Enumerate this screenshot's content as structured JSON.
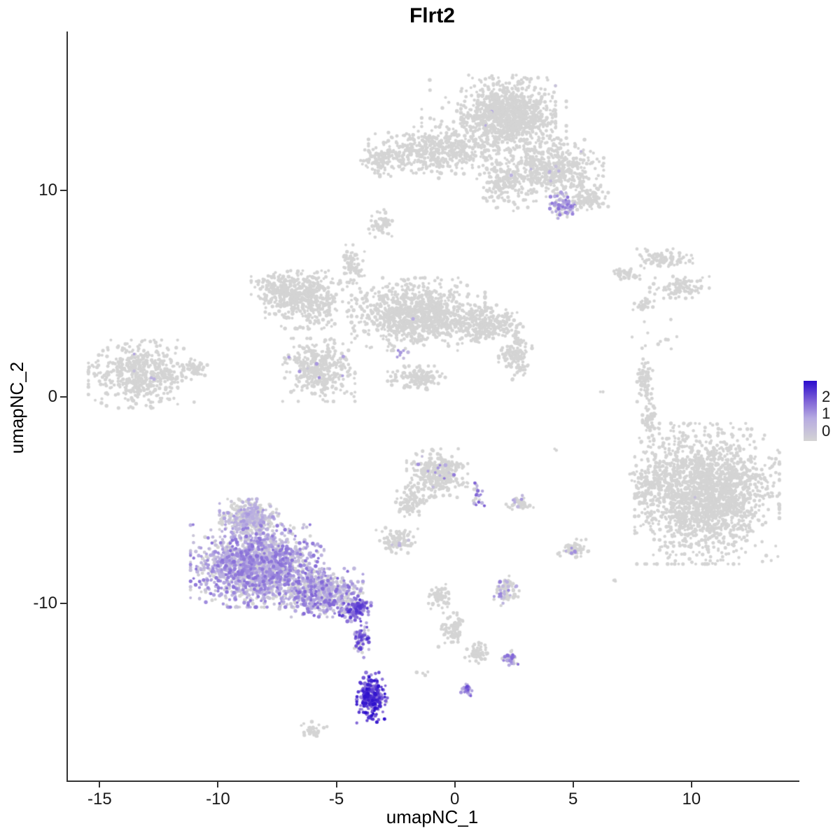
{
  "chart_data": {
    "type": "scatter",
    "title": "Flrt2",
    "xlabel": "umapNC_1",
    "ylabel": "umapNC_2",
    "xlim": [
      -16.4,
      14.5
    ],
    "ylim": [
      -18.6,
      17.7
    ],
    "xticks": [
      -15,
      -10,
      -5,
      0,
      5,
      10
    ],
    "yticks": [
      10,
      0,
      -10
    ],
    "grid": false,
    "background": "#ffffff",
    "axis_color": "#333333",
    "point_color_zero": "#d4d4d4",
    "value_max": 2.6,
    "color_stops": [
      {
        "t": 0.0,
        "color": "#d4d4d4"
      },
      {
        "t": 0.38,
        "color": "#b6aae1"
      },
      {
        "t": 0.68,
        "color": "#7b5ed6"
      },
      {
        "t": 1.0,
        "color": "#2a0ccd"
      }
    ],
    "legend": {
      "position": "right",
      "labels": [
        "2",
        "1",
        "0"
      ]
    },
    "clusters": [
      {
        "name": "top-main",
        "cx": 2.2,
        "cy": 13.7,
        "rx": 1.7,
        "ry": 1.5,
        "n": 850,
        "expr": {
          "frac": 0.004,
          "min": 0.4,
          "max": 1.2
        }
      },
      {
        "name": "top-main-halo",
        "cx": 1.6,
        "cy": 13.0,
        "rx": 2.6,
        "ry": 2.2,
        "n": 300
      },
      {
        "name": "top-left-arm",
        "cx": -1.0,
        "cy": 11.9,
        "rx": 2.3,
        "ry": 1.0,
        "n": 420
      },
      {
        "name": "top-left-tip",
        "cx": -3.2,
        "cy": 11.5,
        "rx": 0.8,
        "ry": 0.7,
        "n": 90
      },
      {
        "name": "top-right-arm",
        "cx": 4.0,
        "cy": 11.0,
        "rx": 1.9,
        "ry": 1.3,
        "n": 520,
        "expr": {
          "frac": 0.012,
          "min": 0.3,
          "max": 1.0
        }
      },
      {
        "name": "top-bridge",
        "cx": 2.0,
        "cy": 10.3,
        "rx": 0.9,
        "ry": 1.1,
        "n": 140
      },
      {
        "name": "top-purple-patch",
        "cx": 4.5,
        "cy": 9.2,
        "rx": 0.55,
        "ry": 0.6,
        "n": 80,
        "expr": {
          "frac": 0.75,
          "min": 0.3,
          "max": 1.6
        }
      },
      {
        "name": "top-right-tail",
        "cx": 5.6,
        "cy": 9.6,
        "rx": 0.7,
        "ry": 0.5,
        "n": 90
      },
      {
        "name": "blob-upper-small",
        "cx": -3.1,
        "cy": 8.3,
        "rx": 0.5,
        "ry": 0.65,
        "n": 60
      },
      {
        "name": "mid-main",
        "cx": -1.6,
        "cy": 4.0,
        "rx": 2.4,
        "ry": 1.5,
        "n": 1000,
        "expr": {
          "frac": 0.004,
          "min": 0.3,
          "max": 1.2
        }
      },
      {
        "name": "mid-left-lobe",
        "cx": -6.3,
        "cy": 4.7,
        "rx": 1.5,
        "ry": 1.2,
        "n": 420
      },
      {
        "name": "mid-left-top",
        "cx": -7.6,
        "cy": 5.3,
        "rx": 0.9,
        "ry": 0.7,
        "n": 140
      },
      {
        "name": "mid-sw-lobe",
        "cx": -5.8,
        "cy": 1.3,
        "rx": 1.3,
        "ry": 1.3,
        "n": 380,
        "expr": {
          "frac": 0.015,
          "min": 0.3,
          "max": 1.3
        }
      },
      {
        "name": "mid-spike",
        "cx": -4.4,
        "cy": 6.3,
        "rx": 0.45,
        "ry": 0.9,
        "n": 70
      },
      {
        "name": "mid-right-arm",
        "cx": 1.3,
        "cy": 3.5,
        "rx": 1.3,
        "ry": 0.8,
        "n": 240
      },
      {
        "name": "mid-right-tail",
        "cx": 2.5,
        "cy": 2.0,
        "rx": 0.6,
        "ry": 1.0,
        "n": 130
      },
      {
        "name": "mid-down-tail",
        "cx": -1.6,
        "cy": 0.9,
        "rx": 1.1,
        "ry": 0.5,
        "n": 130
      },
      {
        "name": "mid-purple-spot",
        "cx": -2.3,
        "cy": 2.1,
        "rx": 0.25,
        "ry": 0.25,
        "n": 8,
        "expr": {
          "frac": 0.9,
          "min": 0.5,
          "max": 1.4
        }
      },
      {
        "name": "left-oval",
        "cx": -13.3,
        "cy": 1.1,
        "rx": 1.9,
        "ry": 1.4,
        "n": 520,
        "expr": {
          "frac": 0.012,
          "min": 0.3,
          "max": 1.1
        }
      },
      {
        "name": "left-oval-tip",
        "cx": -11.1,
        "cy": 1.4,
        "rx": 0.5,
        "ry": 0.4,
        "n": 50
      },
      {
        "name": "right-upper-1",
        "cx": 8.7,
        "cy": 6.7,
        "rx": 1.1,
        "ry": 0.4,
        "n": 90
      },
      {
        "name": "right-upper-2",
        "cx": 7.2,
        "cy": 5.9,
        "rx": 0.55,
        "ry": 0.3,
        "n": 40
      },
      {
        "name": "right-upper-3",
        "cx": 9.4,
        "cy": 5.3,
        "rx": 1.1,
        "ry": 0.45,
        "n": 100
      },
      {
        "name": "right-upper-4",
        "cx": 7.9,
        "cy": 4.5,
        "rx": 0.4,
        "ry": 0.3,
        "n": 30
      },
      {
        "name": "right-sliver-1",
        "cx": 8.0,
        "cy": 0.8,
        "rx": 0.3,
        "ry": 0.9,
        "n": 70
      },
      {
        "name": "right-sliver-2",
        "cx": 8.2,
        "cy": -1.0,
        "rx": 0.28,
        "ry": 0.7,
        "n": 50
      },
      {
        "name": "right-dots",
        "cx": 8.3,
        "cy": 2.8,
        "rx": 1.2,
        "ry": 0.8,
        "n": 12
      },
      {
        "name": "right-main",
        "cx": 10.6,
        "cy": -4.7,
        "rx": 2.6,
        "ry": 2.9,
        "n": 1900,
        "expr": {
          "frac": 0.0015,
          "min": 0.4,
          "max": 1.2
        }
      },
      {
        "name": "right-main-west-point",
        "cx": 8.2,
        "cy": -4.3,
        "rx": 0.8,
        "ry": 0.8,
        "n": 120
      },
      {
        "name": "right-sparse-above",
        "cx": 9.0,
        "cy": -1.8,
        "rx": 0.8,
        "ry": 0.8,
        "n": 15
      },
      {
        "name": "center-blob",
        "cx": -0.8,
        "cy": -3.7,
        "rx": 1.1,
        "ry": 1.0,
        "n": 330,
        "expr": {
          "frac": 0.03,
          "min": 0.3,
          "max": 1.5
        }
      },
      {
        "name": "center-arm",
        "cx": -1.9,
        "cy": -5.0,
        "rx": 0.6,
        "ry": 0.7,
        "n": 90
      },
      {
        "name": "center-purple-east",
        "cx": 0.9,
        "cy": -4.7,
        "rx": 0.25,
        "ry": 0.5,
        "n": 20,
        "expr": {
          "frac": 0.7,
          "min": 0.5,
          "max": 1.8
        }
      },
      {
        "name": "center-east-blob",
        "cx": 2.7,
        "cy": -5.2,
        "rx": 0.5,
        "ry": 0.35,
        "n": 45,
        "expr": {
          "frac": 0.08,
          "min": 0.4,
          "max": 1.2
        }
      },
      {
        "name": "below-center-blob",
        "cx": -2.5,
        "cy": -7.0,
        "rx": 0.75,
        "ry": 0.55,
        "n": 90,
        "expr": {
          "frac": 0.02,
          "min": 0.4,
          "max": 1.0
        }
      },
      {
        "name": "flrt2-top-knob",
        "cx": -8.7,
        "cy": -5.9,
        "rx": 1.1,
        "ry": 0.8,
        "n": 380,
        "expr": {
          "frac": 0.45,
          "min": 0.2,
          "max": 1.2
        }
      },
      {
        "name": "flrt2-main",
        "cx": -8.4,
        "cy": -8.2,
        "rx": 2.4,
        "ry": 1.7,
        "n": 1600,
        "expr": {
          "frac": 0.8,
          "min": 0.2,
          "max": 1.6
        }
      },
      {
        "name": "flrt2-east",
        "cx": -5.7,
        "cy": -9.5,
        "rx": 1.5,
        "ry": 1.0,
        "n": 520,
        "expr": {
          "frac": 0.8,
          "min": 0.2,
          "max": 1.7
        }
      },
      {
        "name": "flrt2-tip",
        "cx": -4.3,
        "cy": -10.3,
        "rx": 0.6,
        "ry": 0.5,
        "n": 160,
        "expr": {
          "frac": 0.9,
          "min": 0.5,
          "max": 2.2
        }
      },
      {
        "name": "flrt2-tail",
        "cx": -4.0,
        "cy": -11.7,
        "rx": 0.3,
        "ry": 0.8,
        "n": 60,
        "expr": {
          "frac": 0.85,
          "min": 0.5,
          "max": 2.3
        }
      },
      {
        "name": "flrt2-dense-blob",
        "cx": -3.55,
        "cy": -14.6,
        "rx": 0.55,
        "ry": 1.05,
        "n": 240,
        "expr": {
          "frac": 0.97,
          "min": 1.2,
          "max": 2.6
        }
      },
      {
        "name": "purple-spot-bottom",
        "cx": 0.45,
        "cy": -14.2,
        "rx": 0.22,
        "ry": 0.3,
        "n": 28,
        "expr": {
          "frac": 0.9,
          "min": 0.8,
          "max": 2.0
        }
      },
      {
        "name": "bottom-center-1",
        "cx": -0.75,
        "cy": -9.7,
        "rx": 0.4,
        "ry": 0.55,
        "n": 60
      },
      {
        "name": "bottom-center-arm",
        "cx": -0.1,
        "cy": -11.3,
        "rx": 0.55,
        "ry": 0.7,
        "n": 70
      },
      {
        "name": "bottom-center-2",
        "cx": 0.9,
        "cy": -12.4,
        "rx": 0.45,
        "ry": 0.45,
        "n": 55,
        "expr": {
          "frac": 0.05,
          "min": 0.4,
          "max": 1.0
        }
      },
      {
        "name": "bottom-center-purple",
        "cx": 2.3,
        "cy": -12.7,
        "rx": 0.3,
        "ry": 0.35,
        "n": 40,
        "expr": {
          "frac": 0.55,
          "min": 0.4,
          "max": 1.8
        }
      },
      {
        "name": "bottom-center-3",
        "cx": 2.1,
        "cy": -9.4,
        "rx": 0.5,
        "ry": 0.65,
        "n": 80,
        "expr": {
          "frac": 0.3,
          "min": 0.3,
          "max": 1.5
        }
      },
      {
        "name": "bottom-center-4",
        "cx": 4.95,
        "cy": -7.4,
        "rx": 0.55,
        "ry": 0.45,
        "n": 70,
        "expr": {
          "frac": 0.05,
          "min": 0.4,
          "max": 1.4
        }
      },
      {
        "name": "bottom-tiny",
        "cx": -6.1,
        "cy": -16.1,
        "rx": 0.55,
        "ry": 0.3,
        "n": 30
      },
      {
        "name": "stray-1",
        "cx": 6.2,
        "cy": 0.2,
        "rx": 0.15,
        "ry": 0.15,
        "n": 2
      },
      {
        "name": "stray-2",
        "cx": 4.1,
        "cy": -2.5,
        "rx": 0.15,
        "ry": 0.15,
        "n": 2
      },
      {
        "name": "stray-3",
        "cx": 6.7,
        "cy": -8.9,
        "rx": 0.2,
        "ry": 0.15,
        "n": 3
      },
      {
        "name": "stray-4",
        "cx": -1.4,
        "cy": -13.4,
        "rx": 0.3,
        "ry": 0.2,
        "n": 4
      }
    ]
  }
}
